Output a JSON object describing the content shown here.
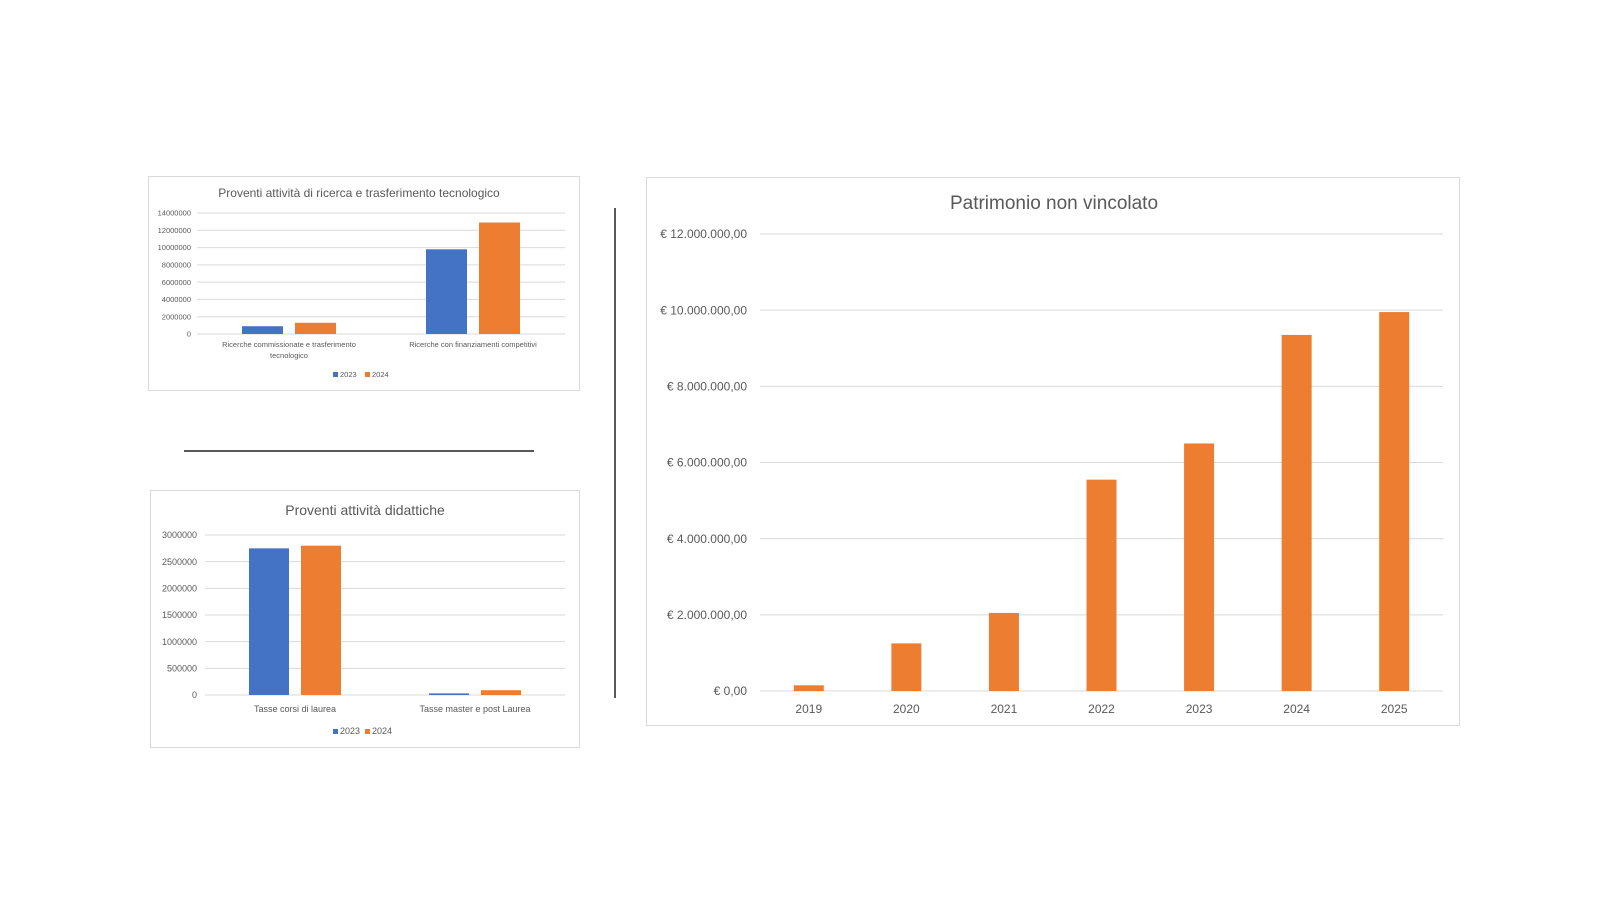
{
  "colors": {
    "series_2023": "#4472c4",
    "series_2024": "#ed7d31",
    "gridline": "#d9d9d9",
    "text": "#595959"
  },
  "chart_data": [
    {
      "type": "bar",
      "title": "Proventi attività di ricerca e trasferimento tecnologico",
      "categories": [
        [
          "Ricerche commissionate e trasferimento",
          "tecnologico"
        ],
        [
          "Ricerche con finanziamenti competitivi"
        ]
      ],
      "series": [
        {
          "name": "2023",
          "values": [
            900000,
            9800000
          ]
        },
        {
          "name": "2024",
          "values": [
            1300000,
            12900000
          ]
        }
      ],
      "ylim": [
        0,
        14000000
      ],
      "yticks": [
        "0",
        "2000000",
        "4000000",
        "6000000",
        "8000000",
        "10000000",
        "12000000",
        "14000000"
      ],
      "grid": true,
      "legend": "bottom"
    },
    {
      "type": "bar",
      "title": "Proventi attività didattiche",
      "categories": [
        [
          "Tasse corsi di laurea"
        ],
        [
          "Tasse master e post Laurea"
        ]
      ],
      "series": [
        {
          "name": "2023",
          "values": [
            2750000,
            30000
          ]
        },
        {
          "name": "2024",
          "values": [
            2800000,
            90000
          ]
        }
      ],
      "ylim": [
        0,
        3000000
      ],
      "yticks": [
        "0",
        "500000",
        "1000000",
        "1500000",
        "2000000",
        "2500000",
        "3000000"
      ],
      "grid": true,
      "legend": "bottom"
    },
    {
      "type": "bar",
      "title": "Patrimonio non vincolato",
      "categories": [
        [
          "2019"
        ],
        [
          "2020"
        ],
        [
          "2021"
        ],
        [
          "2022"
        ],
        [
          "2023"
        ],
        [
          "2024"
        ],
        [
          "2025"
        ]
      ],
      "series": [
        {
          "values": [
            150000,
            1250000,
            2050000,
            5550000,
            6500000,
            9350000,
            9950000
          ]
        }
      ],
      "ylim": [
        0,
        12000000
      ],
      "yticks": [
        "€ 0,00",
        "€ 2.000.000,00",
        "€ 4.000.000,00",
        "€ 6.000.000,00",
        "€ 8.000.000,00",
        "€ 10.000.000,00",
        "€ 12.000.000,00"
      ],
      "grid": true,
      "legend": "none"
    }
  ]
}
